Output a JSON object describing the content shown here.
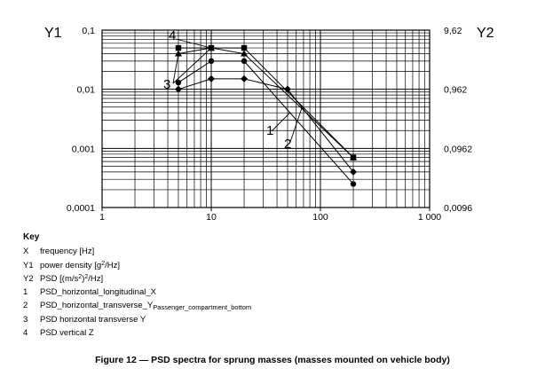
{
  "chart_data": {
    "type": "line",
    "x_scale": "log",
    "y_scale": "log",
    "xlim": [
      1,
      1000
    ],
    "ylim": [
      0.0001,
      0.1
    ],
    "y2lim": [
      0.0096,
      9.62
    ],
    "x_ticks": [
      "1",
      "10",
      "100",
      "1 000"
    ],
    "y_ticks": [
      "0,0001",
      "0,001",
      "0,01",
      "0,1"
    ],
    "y2_ticks": [
      "0,0096",
      "0,0962",
      "0,962",
      "9,62"
    ],
    "ylabel": "Y1",
    "y2label": "Y2",
    "grid": true,
    "series": [
      {
        "name": "1",
        "marker": "circle",
        "x": [
          5,
          10,
          20,
          200
        ],
        "y": [
          0.013,
          0.03,
          0.03,
          0.00025
        ]
      },
      {
        "name": "2",
        "marker": "diamond",
        "x": [
          5,
          10,
          20,
          50,
          200
        ],
        "y": [
          0.01,
          0.015,
          0.015,
          0.01,
          0.0004
        ]
      },
      {
        "name": "3",
        "marker": "triangle",
        "x": [
          5,
          10,
          20,
          200
        ],
        "y": [
          0.04,
          0.05,
          0.04,
          0.0007
        ]
      },
      {
        "name": "4",
        "marker": "square",
        "x": [
          5,
          10,
          20,
          200
        ],
        "y": [
          0.05,
          0.05,
          0.05,
          0.0007
        ]
      }
    ],
    "curve_labels": [
      {
        "text": "1",
        "series": "1"
      },
      {
        "text": "2",
        "series": "2"
      },
      {
        "text": "3",
        "series": "3"
      },
      {
        "text": "4",
        "series": "4"
      }
    ]
  },
  "key": {
    "title": "Key",
    "items": [
      {
        "sym": "X",
        "text": "frequency [Hz]"
      },
      {
        "sym": "Y1",
        "text_pre": "power density [g",
        "sup": "2",
        "text_post": "/Hz]"
      },
      {
        "sym": "Y2",
        "text_pre": "PSD [(m/s",
        "sup": "2",
        "text_mid": ")",
        "sup2": "2",
        "text_post": "/Hz]"
      },
      {
        "sym": "1",
        "text": "PSD_horizontal_longitudinal_X"
      },
      {
        "sym": "2",
        "text_pre": "PSD_horizontal_transverse_Y",
        "sub": "Passenger_compartment_bottom"
      },
      {
        "sym": "3",
        "text": "PSD horizontal transverse Y"
      },
      {
        "sym": "4",
        "text": "PSD vertical Z"
      }
    ]
  },
  "caption": "Figure 12 — PSD spectra for sprung masses (masses mounted on vehicle body)"
}
